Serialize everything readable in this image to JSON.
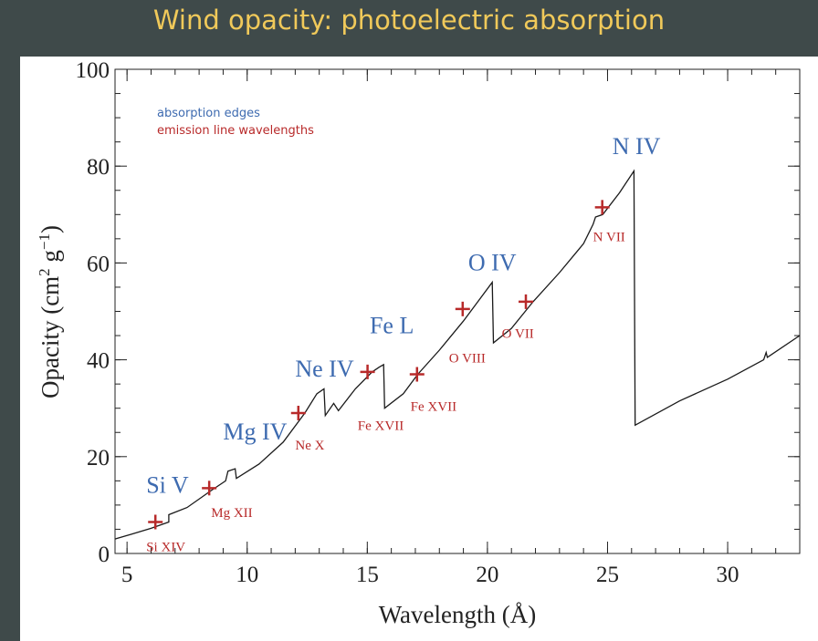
{
  "slide_title": "Wind opacity: photoelectric absorption",
  "colors": {
    "background": "#3f4a4a",
    "title": "#f0c95a",
    "edge": "#3e6bb0",
    "emission": "#b82a2a",
    "curve": "#1a1a1a"
  },
  "legend": {
    "edges_label": "absorption edges",
    "lines_label": "emission line wavelengths",
    "position": "top-left"
  },
  "chart_data": {
    "type": "line",
    "title": "",
    "xlabel": "Wavelength (Å)",
    "ylabel_main": "Opacity (cm",
    "ylabel_sup1": "2",
    "ylabel_mid": " g",
    "ylabel_sup2": "−1",
    "ylabel_end": ")",
    "xlim": [
      4.5,
      33
    ],
    "ylim": [
      0,
      100
    ],
    "x_ticks": [
      5,
      10,
      15,
      20,
      25,
      30
    ],
    "y_ticks": [
      0,
      20,
      40,
      60,
      80,
      100
    ],
    "x_minor_step": 1,
    "y_minor_step": 5,
    "curve": [
      [
        4.5,
        3.0
      ],
      [
        5.2,
        4.0
      ],
      [
        6.0,
        5.2
      ],
      [
        6.74,
        6.5
      ],
      [
        6.74,
        8.0
      ],
      [
        7.5,
        9.5
      ],
      [
        8.5,
        13.0
      ],
      [
        9.1,
        15.0
      ],
      [
        9.2,
        17.0
      ],
      [
        9.5,
        17.5
      ],
      [
        9.55,
        15.5
      ],
      [
        10.5,
        18.5
      ],
      [
        11.5,
        23.0
      ],
      [
        12.4,
        29.0
      ],
      [
        12.9,
        33.0
      ],
      [
        13.2,
        34.0
      ],
      [
        13.25,
        28.5
      ],
      [
        13.6,
        31.0
      ],
      [
        13.8,
        29.5
      ],
      [
        14.5,
        34.0
      ],
      [
        15.2,
        37.5
      ],
      [
        15.5,
        38.5
      ],
      [
        15.68,
        39.0
      ],
      [
        15.72,
        30.0
      ],
      [
        16.5,
        33.0
      ],
      [
        17.1,
        37.0
      ],
      [
        18.0,
        42.0
      ],
      [
        19.0,
        48.0
      ],
      [
        19.6,
        52.0
      ],
      [
        20.2,
        56.0
      ],
      [
        20.25,
        43.5
      ],
      [
        21.0,
        46.5
      ],
      [
        21.9,
        52.0
      ],
      [
        23.0,
        58.0
      ],
      [
        24.0,
        64.0
      ],
      [
        24.4,
        68.0
      ],
      [
        24.5,
        69.5
      ],
      [
        24.8,
        70.0
      ],
      [
        25.5,
        74.5
      ],
      [
        26.1,
        79.0
      ],
      [
        26.15,
        26.5
      ],
      [
        28.0,
        31.5
      ],
      [
        30.0,
        36.0
      ],
      [
        31.5,
        40.0
      ],
      [
        31.6,
        41.5
      ],
      [
        31.65,
        40.5
      ],
      [
        33.0,
        45.0
      ]
    ],
    "edge_labels": [
      {
        "text": "Si V",
        "x": 5.8,
        "y": 12.5
      },
      {
        "text": "Mg IV",
        "x": 9.0,
        "y": 23.5
      },
      {
        "text": "Ne IV",
        "x": 12.0,
        "y": 36.5
      },
      {
        "text": "Fe L",
        "x": 15.1,
        "y": 45.5
      },
      {
        "text": "O IV",
        "x": 19.2,
        "y": 58.5
      },
      {
        "text": "N IV",
        "x": 25.2,
        "y": 82.5
      }
    ],
    "emission_lines": [
      {
        "name": "Si XIV",
        "x": 6.18,
        "y": 6.5,
        "label_x": 5.8,
        "label_y": 0.5
      },
      {
        "name": "Mg XII",
        "x": 8.42,
        "y": 13.5,
        "label_x": 8.5,
        "label_y": 7.5
      },
      {
        "name": "Ne X",
        "x": 12.13,
        "y": 29.0,
        "label_x": 12.0,
        "label_y": 21.5
      },
      {
        "name": "Fe XVII",
        "x": 15.01,
        "y": 37.5,
        "label_x": 14.6,
        "label_y": 25.5
      },
      {
        "name": "Fe XVII",
        "x": 17.07,
        "y": 37.0,
        "label_x": 16.8,
        "label_y": 29.5
      },
      {
        "name": "O VIII",
        "x": 18.97,
        "y": 50.5,
        "label_x": 18.4,
        "label_y": 39.5
      },
      {
        "name": "O VII",
        "x": 21.6,
        "y": 52.0,
        "label_x": 20.6,
        "label_y": 44.5
      },
      {
        "name": "N VII",
        "x": 24.78,
        "y": 71.5,
        "label_x": 24.4,
        "label_y": 64.5
      }
    ]
  }
}
